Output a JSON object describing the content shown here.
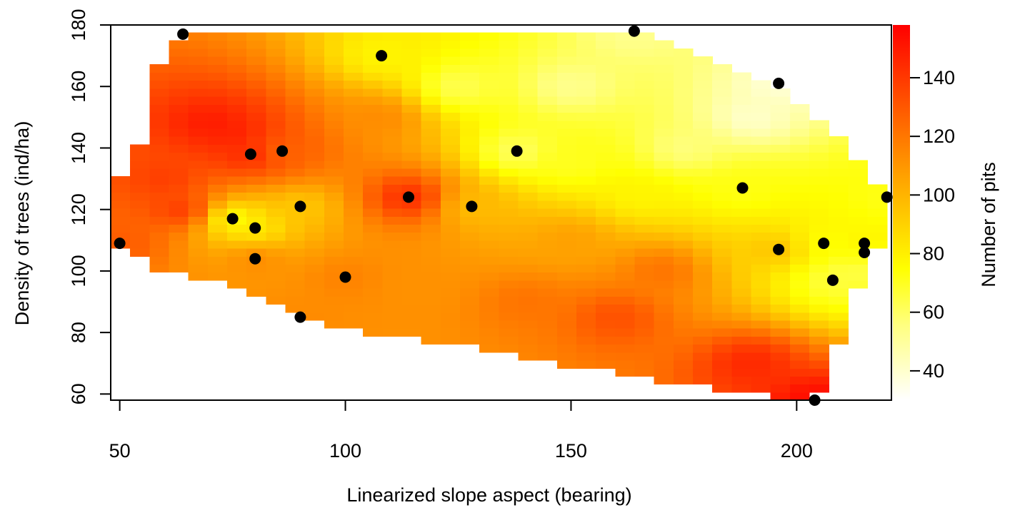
{
  "chart_data": {
    "type": "heatmap",
    "title": "",
    "xlabel": "Linearized slope aspect (bearing)",
    "ylabel": "Density of trees (ind/ha)",
    "colorbar_label": "Number of pits",
    "xlim": [
      48,
      221
    ],
    "ylim": [
      58,
      180
    ],
    "x_ticks": [
      50,
      100,
      150,
      200
    ],
    "y_ticks": [
      60,
      80,
      100,
      120,
      140,
      160,
      180
    ],
    "colorbar_ticks": [
      40,
      60,
      80,
      100,
      120,
      140
    ],
    "colorbar_range": [
      30,
      158
    ],
    "colorscale": [
      "#ffffff",
      "#ffff66",
      "#ffff00",
      "#ff9900",
      "#ff0000"
    ],
    "grid": false,
    "observations": [
      {
        "x": 50,
        "y": 109
      },
      {
        "x": 64,
        "y": 177
      },
      {
        "x": 75,
        "y": 117
      },
      {
        "x": 79,
        "y": 138
      },
      {
        "x": 80,
        "y": 114
      },
      {
        "x": 80,
        "y": 104
      },
      {
        "x": 86,
        "y": 139
      },
      {
        "x": 90,
        "y": 121
      },
      {
        "x": 90,
        "y": 85
      },
      {
        "x": 100,
        "y": 98
      },
      {
        "x": 108,
        "y": 170
      },
      {
        "x": 114,
        "y": 124
      },
      {
        "x": 128,
        "y": 121
      },
      {
        "x": 138,
        "y": 139
      },
      {
        "x": 164,
        "y": 178
      },
      {
        "x": 188,
        "y": 127
      },
      {
        "x": 196,
        "y": 161
      },
      {
        "x": 196,
        "y": 107
      },
      {
        "x": 204,
        "y": 58
      },
      {
        "x": 206,
        "y": 109
      },
      {
        "x": 208,
        "y": 97
      },
      {
        "x": 215,
        "y": 109
      },
      {
        "x": 215,
        "y": 106
      },
      {
        "x": 220,
        "y": 124
      }
    ]
  }
}
